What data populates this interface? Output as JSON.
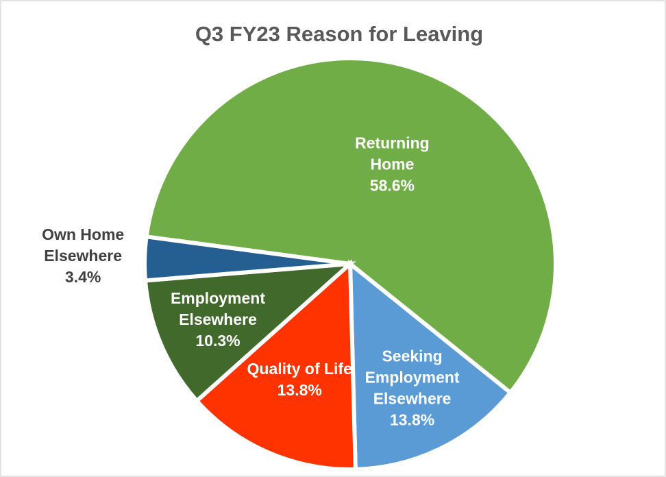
{
  "chart_data": {
    "type": "pie",
    "title": "Q3 FY23 Reason for Leaving",
    "categories": [
      "Returning Home",
      "Seeking Employment Elsewhere",
      "Quality of Life",
      "Employment Elsewhere",
      "Own Home Elsewhere"
    ],
    "values": [
      58.6,
      13.8,
      13.8,
      10.3,
      3.4
    ],
    "value_labels": [
      "58.6%",
      "13.8%",
      "13.8%",
      "10.3%",
      "3.4%"
    ],
    "colors": [
      "#70ad47",
      "#5b9bd5",
      "#ff3300",
      "#41692c",
      "#255e91"
    ]
  }
}
